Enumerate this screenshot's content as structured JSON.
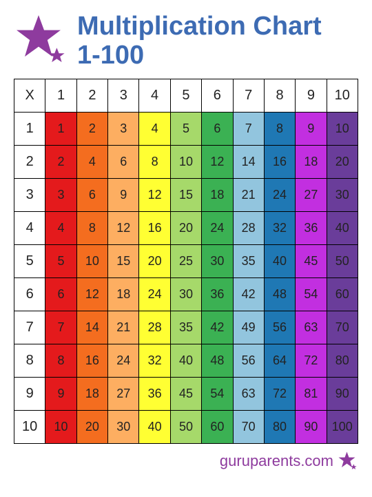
{
  "title_line1": "Multiplication Chart",
  "title_line2": "1-100",
  "title_color": "#3d6bb3",
  "star_color": "#8e3b9e",
  "corner_label": "X",
  "size": 10,
  "column_colors": [
    "#e41a1c",
    "#f46d1f",
    "#fdae61",
    "#ffff33",
    "#a6d96a",
    "#3bb153",
    "#92c5de",
    "#1f78b4",
    "#c22fe0",
    "#6a3d9a"
  ],
  "header_bg": "#ffffff",
  "cell_text_color": "#222222",
  "footer_text": "guruparents.com",
  "footer_color": "#8e3b9e"
}
